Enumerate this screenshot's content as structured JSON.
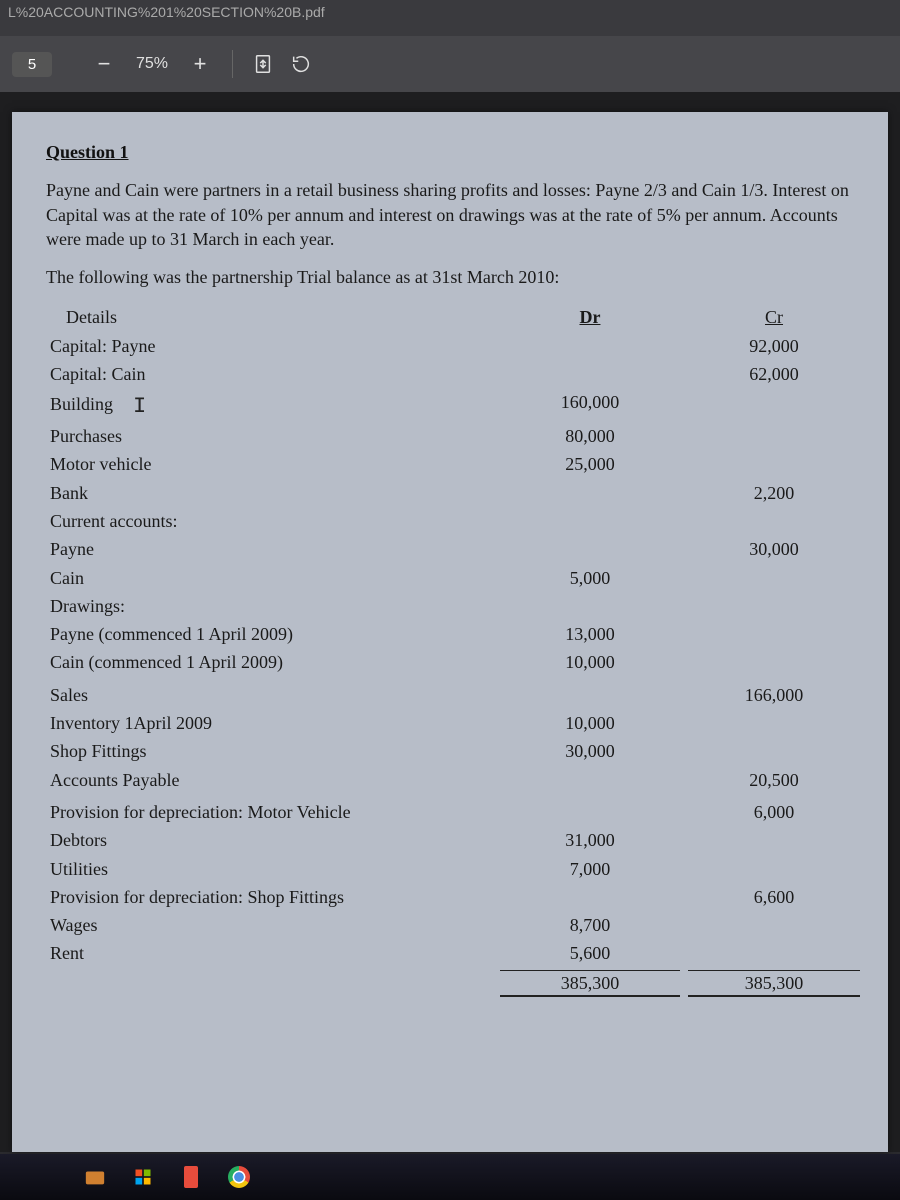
{
  "urlFragment": "L%20ACCOUNTING%201%20SECTION%20B.pdf",
  "toolbar": {
    "pageNumber": "5",
    "zoom": "75%"
  },
  "doc": {
    "questionHeading": "Question 1",
    "intro": "Payne and Cain were partners in a retail business sharing profits and losses: Payne 2/3 and Cain 1/3. Interest on Capital was at the rate of 10% per annum and interest on drawings was at the rate of 5% per annum. Accounts were made up to 31 March in each year.",
    "lead": "The following was the partnership Trial balance as at 31st March 2010:",
    "headers": {
      "details": "Details",
      "dr": "Dr",
      "cr": "Cr"
    },
    "rows": [
      {
        "d": "Capital: Payne",
        "dr": "",
        "cr": "92,000"
      },
      {
        "d": "Capital: Cain",
        "dr": "",
        "cr": "62,000"
      },
      {
        "d": "Building",
        "dr": "160,000",
        "cr": "",
        "cursor": true
      },
      {
        "d": "Purchases",
        "dr": "80,000",
        "cr": ""
      },
      {
        "d": "Motor vehicle",
        "dr": "25,000",
        "cr": ""
      },
      {
        "d": "Bank",
        "dr": "",
        "cr": "2,200"
      },
      {
        "d": "Current accounts:",
        "dr": "",
        "cr": ""
      },
      {
        "d": "Payne",
        "dr": "",
        "cr": "30,000"
      },
      {
        "d": "Cain",
        "dr": "5,000",
        "cr": ""
      },
      {
        "d": "Drawings:",
        "dr": "",
        "cr": ""
      },
      {
        "d": "Payne  (commenced 1 April 2009)",
        "dr": "13,000",
        "cr": ""
      },
      {
        "d": "Cain  (commenced 1 April 2009)",
        "dr": "10,000",
        "cr": ""
      },
      {
        "d": "",
        "dr": "",
        "cr": ""
      },
      {
        "d": "Sales",
        "dr": "",
        "cr": "166,000"
      },
      {
        "d": "Inventory 1April 2009",
        "dr": "10,000",
        "cr": ""
      },
      {
        "d": "Shop Fittings",
        "dr": "30,000",
        "cr": ""
      },
      {
        "d": "Accounts Payable",
        "dr": "",
        "cr": "20,500"
      },
      {
        "d": "",
        "dr": "",
        "cr": ""
      },
      {
        "d": "Provision for depreciation: Motor Vehicle",
        "dr": "",
        "cr": "6,000"
      },
      {
        "d": "Debtors",
        "dr": "31,000",
        "cr": ""
      },
      {
        "d": "Utilities",
        "dr": "7,000",
        "cr": ""
      },
      {
        "d": "Provision for depreciation: Shop Fittings",
        "dr": "",
        "cr": "6,600"
      },
      {
        "d": "Wages",
        "dr": "8,700",
        "cr": ""
      },
      {
        "d": "Rent",
        "dr": "5,600",
        "cr": ""
      }
    ],
    "totals": {
      "dr": "385,300",
      "cr": "385,300"
    }
  }
}
